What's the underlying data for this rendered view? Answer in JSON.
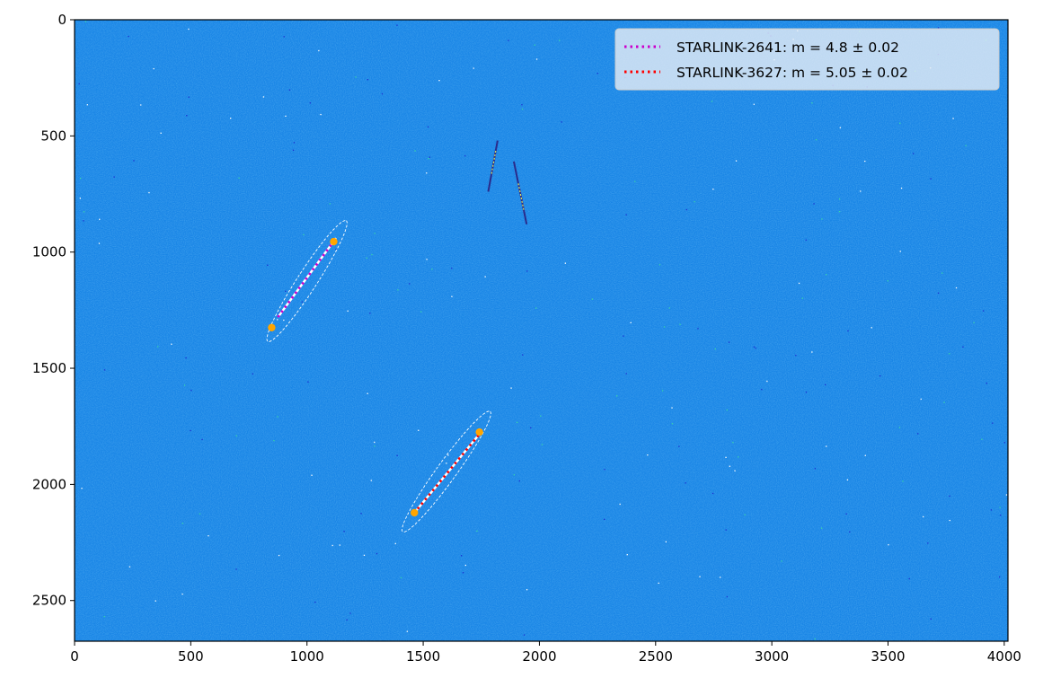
{
  "chart_data": {
    "type": "image",
    "xlim": [
      0,
      4016
    ],
    "ylim": [
      2675,
      0
    ],
    "x_ticks": [
      0,
      500,
      1000,
      1500,
      2000,
      2500,
      3000,
      3500,
      4000
    ],
    "y_ticks": [
      0,
      500,
      1000,
      1500,
      2000,
      2500
    ],
    "x_tick_labels": [
      "0",
      "500",
      "1000",
      "1500",
      "2000",
      "2500",
      "3000",
      "3500",
      "4000"
    ],
    "y_tick_labels": [
      "0",
      "500",
      "1000",
      "1500",
      "2000",
      "2500"
    ],
    "colormap": [
      "#1a2fd0",
      "#1562e0",
      "#1a86e6",
      "#22a6ea",
      "#28c4e0",
      "#38d6a8"
    ],
    "legend": {
      "placement": "upper-right",
      "entries": [
        {
          "label": "STARLINK-2641: m = 4.8 ± 0.02",
          "color": "#cc00cc"
        },
        {
          "label": "STARLINK-3627: m = 5.05 ± 0.02",
          "color": "#ff0000"
        }
      ]
    },
    "series": [
      {
        "name": "STARLINK-2641",
        "color": "#cc00cc",
        "track": [
          [
            875,
            1280
          ],
          [
            1125,
            940
          ]
        ],
        "endpoints": [
          [
            848,
            1325
          ],
          [
            1115,
            955
          ]
        ],
        "ellipse": {
          "center": [
            1000,
            1125
          ],
          "semi_major": 310,
          "semi_minor": 42,
          "angle_deg": -57
        }
      },
      {
        "name": "STARLINK-3627",
        "color": "#ff0000",
        "track": [
          [
            1460,
            2125
          ],
          [
            1745,
            1780
          ]
        ],
        "endpoints": [
          [
            1462,
            2122
          ],
          [
            1742,
            1775
          ]
        ],
        "ellipse": {
          "center": [
            1600,
            1945
          ],
          "semi_major": 320,
          "semi_minor": 42,
          "angle_deg": -54
        }
      }
    ],
    "other_streaks": [
      {
        "from": [
          1780,
          740
        ],
        "to": [
          1820,
          520
        ],
        "color": "#2a2a8a"
      },
      {
        "from": [
          1890,
          610
        ],
        "to": [
          1945,
          880
        ],
        "color": "#2a2a8a"
      }
    ]
  }
}
